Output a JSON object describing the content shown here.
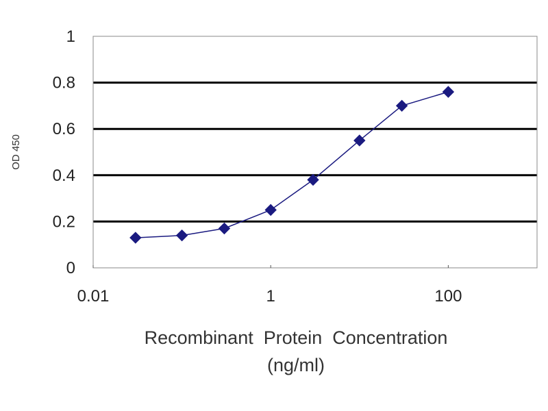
{
  "chart_data": {
    "type": "line",
    "xlabel": "Recombinant  Protein  Concentration",
    "xlabel_unit": "(ng/ml)",
    "ylabel": "OD 450",
    "x_scale": "log",
    "xlim": [
      0.01,
      1000
    ],
    "ylim": [
      0,
      1
    ],
    "x_ticks": [
      0.01,
      1,
      100
    ],
    "x_tick_labels": [
      "0.01",
      "1",
      "100"
    ],
    "y_ticks": [
      0,
      0.2,
      0.4,
      0.6,
      0.8,
      1
    ],
    "y_tick_labels": [
      "0",
      "0.2",
      "0.4",
      "0.6",
      "0.8",
      "1"
    ],
    "grid": "horizontal",
    "series": [
      {
        "color": "#1a1a80",
        "marker": "diamond",
        "x": [
          0.03,
          0.1,
          0.3,
          1,
          3,
          10,
          30,
          100
        ],
        "y": [
          0.13,
          0.14,
          0.17,
          0.25,
          0.38,
          0.55,
          0.7,
          0.76
        ]
      }
    ]
  }
}
